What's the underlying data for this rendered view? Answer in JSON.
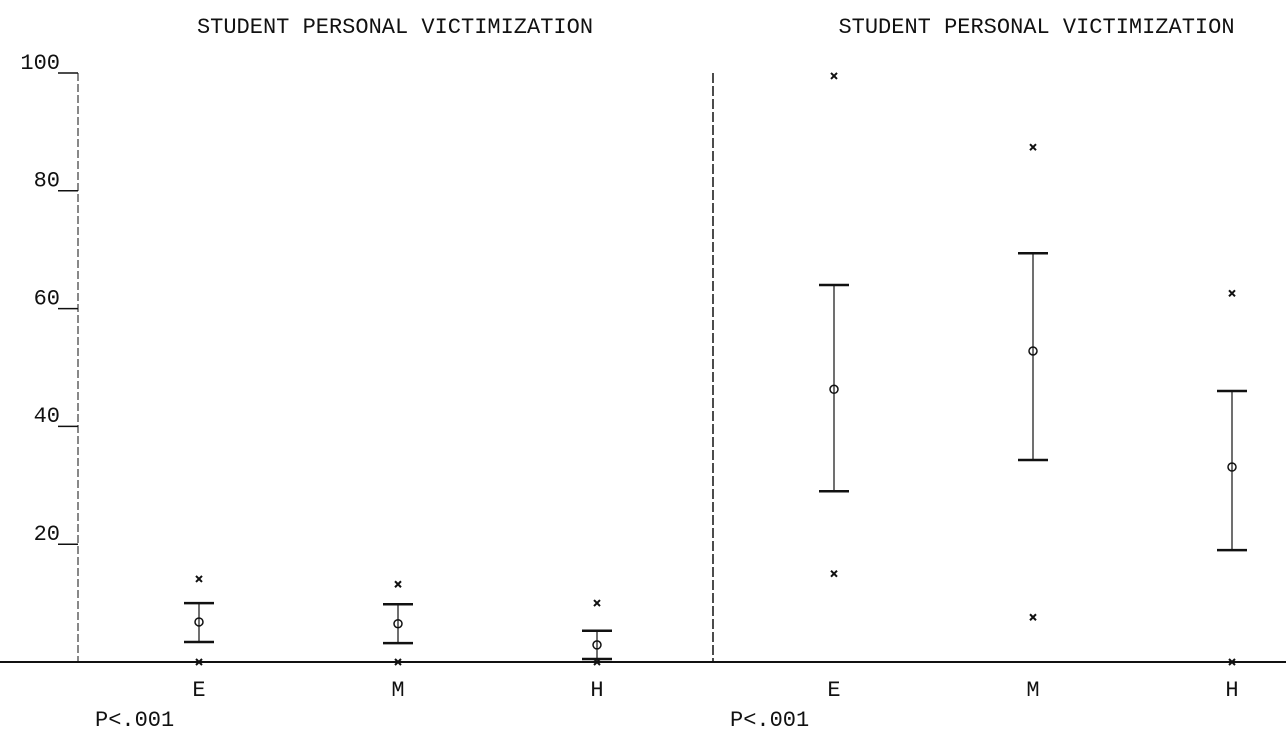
{
  "chart_data": [
    {
      "type": "range",
      "title": "STUDENT PERSONAL VICTIMIZATION",
      "annotation": "P<.001",
      "categories": [
        "E",
        "M",
        "H"
      ],
      "max": [
        14.1,
        13.2,
        10
      ],
      "upper": [
        10,
        9.8,
        5.3
      ],
      "mean": [
        6.8,
        6.5,
        2.9
      ],
      "lower": [
        3.4,
        3.2,
        0.5
      ],
      "min": [
        0,
        0,
        0
      ],
      "ylim": [
        0,
        100
      ],
      "yticks": [
        20,
        40,
        60,
        80,
        100
      ]
    },
    {
      "type": "range",
      "title": "STUDENT PERSONAL VICTIMIZATION",
      "annotation": "P<.001",
      "categories": [
        "E",
        "M",
        "H"
      ],
      "max": [
        99.5,
        87.4,
        62.6
      ],
      "upper": [
        64,
        69.4,
        46
      ],
      "mean": [
        46.3,
        52.8,
        33.1
      ],
      "lower": [
        29,
        34.3,
        19
      ],
      "min": [
        15,
        7.6,
        0
      ],
      "ylim": [
        0,
        100
      ]
    }
  ]
}
